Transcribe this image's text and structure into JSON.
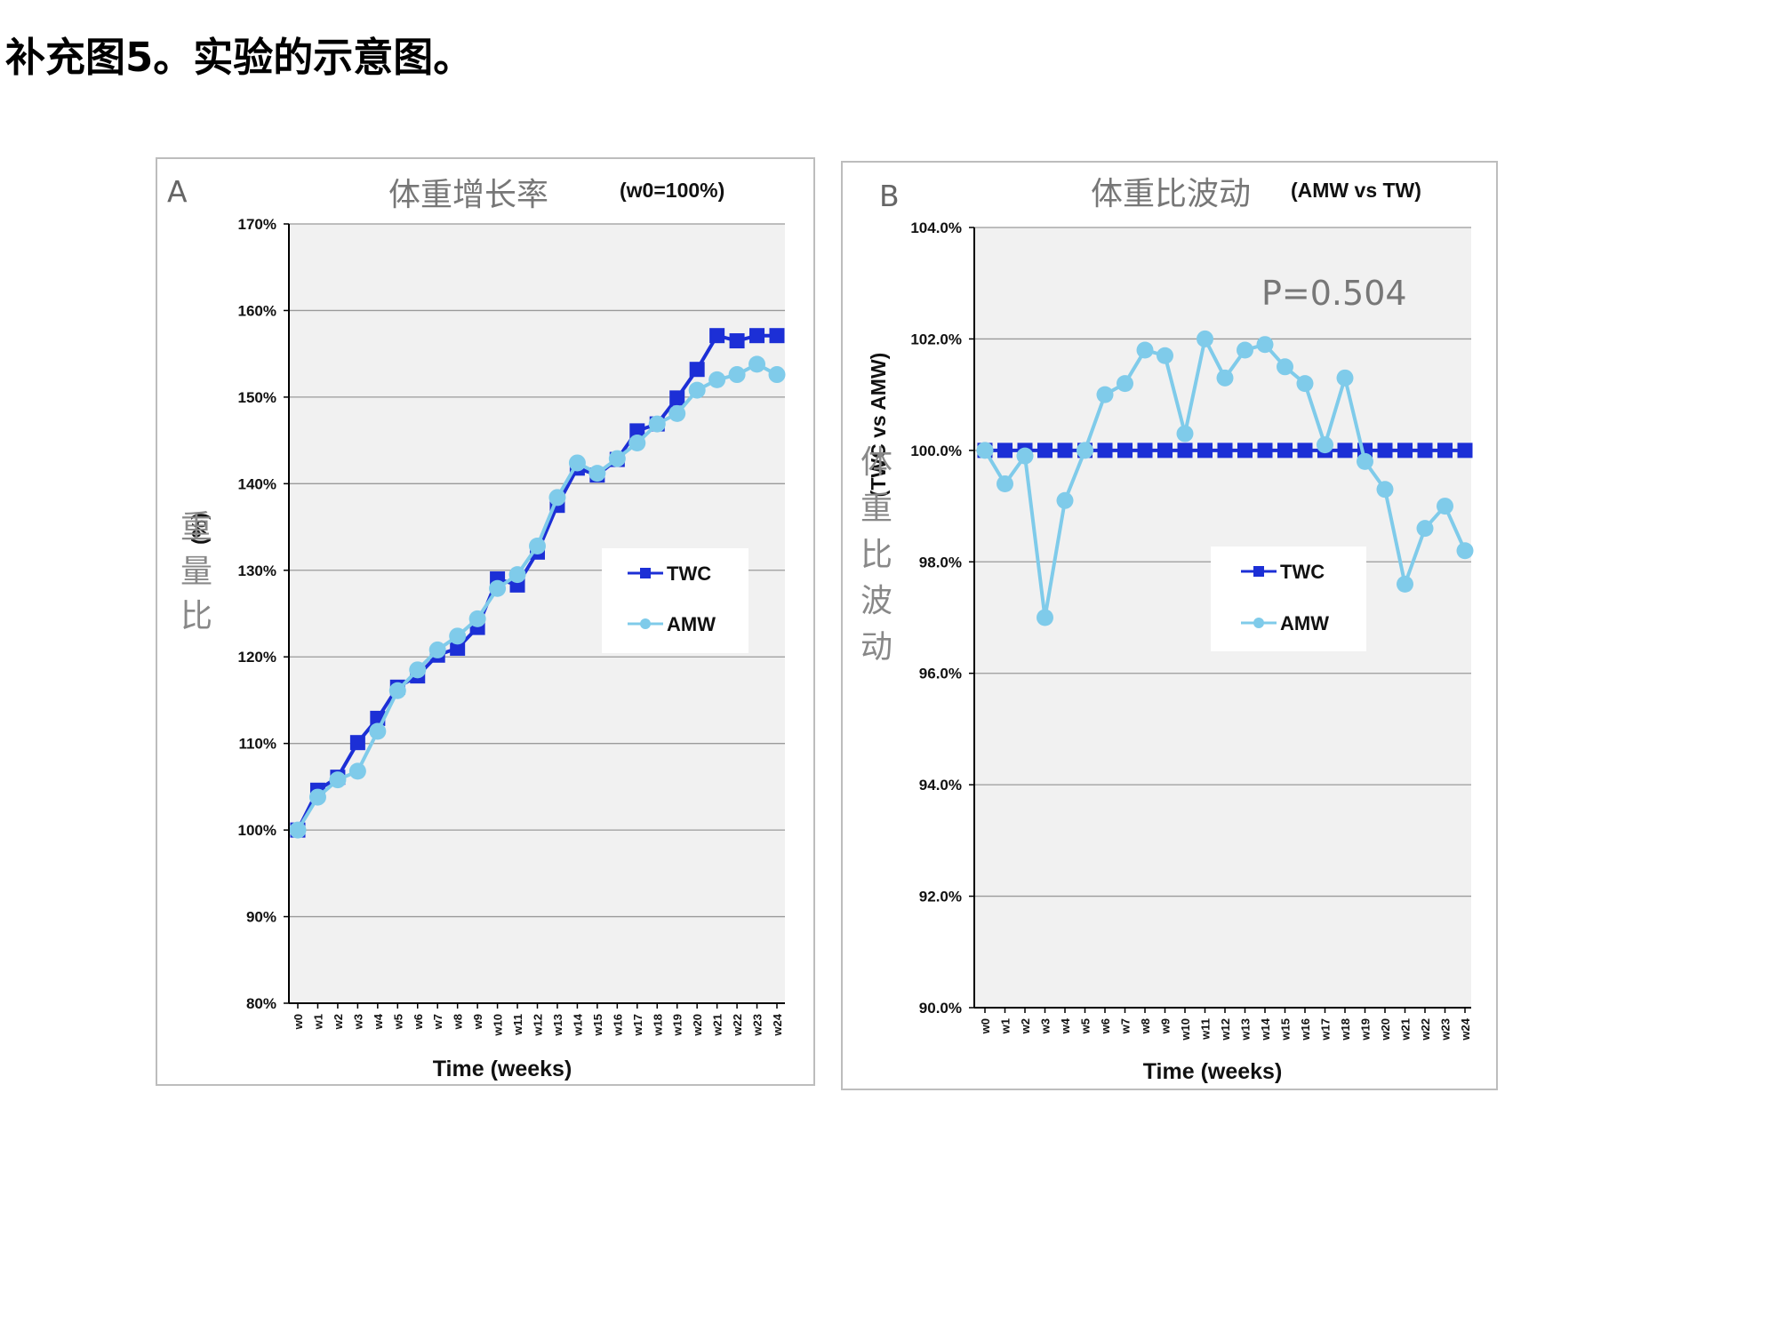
{
  "page_title": "补充图5。实验的示意图。",
  "colors": {
    "TWC": "#1c2fd6",
    "AMW": "#7fcbea",
    "plot_background": "#f1f1f1"
  },
  "chart_data": [
    {
      "type": "line",
      "panel_letter": "A",
      "title": "体重增长率",
      "note": "(w0=100%)",
      "ylabel_cn": "重量比",
      "ylabel_en": "(%)",
      "xlabel": "Time (weeks)",
      "ylim": [
        80,
        170
      ],
      "yticks": [
        80,
        90,
        100,
        110,
        120,
        130,
        140,
        150,
        160,
        170
      ],
      "ytick_labels": [
        "80%",
        "90%",
        "100%",
        "110%",
        "120%",
        "130%",
        "140%",
        "150%",
        "160%",
        "170%"
      ],
      "categories": [
        "w0",
        "w1",
        "w2",
        "w3",
        "w4",
        "w5",
        "w6",
        "w7",
        "w8",
        "w9",
        "w10",
        "w11",
        "w12",
        "w13",
        "w14",
        "w15",
        "w16",
        "w17",
        "w18",
        "w19",
        "w20",
        "w21",
        "w22",
        "w23",
        "w24"
      ],
      "grid": true,
      "legend_position": "center-right",
      "series": [
        {
          "name": "TWC",
          "marker": "square",
          "values": [
            100,
            104.6,
            106.1,
            110.1,
            112.9,
            116.5,
            117.8,
            120.2,
            121.0,
            123.4,
            129.0,
            128.3,
            132.1,
            137.5,
            141.8,
            141.0,
            142.8,
            146.1,
            146.9,
            149.9,
            153.2,
            157.1,
            156.5,
            157.1,
            157.1
          ]
        },
        {
          "name": "AMW",
          "marker": "circle",
          "values": [
            100,
            103.8,
            105.8,
            106.8,
            111.4,
            116.1,
            118.5,
            120.8,
            122.4,
            124.4,
            127.9,
            129.5,
            132.8,
            138.4,
            142.4,
            141.2,
            142.9,
            144.7,
            146.9,
            148.1,
            150.8,
            152.0,
            152.6,
            153.8,
            152.6
          ]
        }
      ]
    },
    {
      "type": "line",
      "panel_letter": "B",
      "title": "体重比波动",
      "note": "(AMW vs TW)",
      "ylabel_cn": "体重比波动",
      "ylabel_en": "(TWC vs AMW)",
      "xlabel": "Time (weeks)",
      "annotation": "P=0.504",
      "ylim": [
        90,
        104
      ],
      "yticks": [
        90,
        92,
        94,
        96,
        98,
        100,
        102,
        104
      ],
      "ytick_labels": [
        "90.0%",
        "92.0%",
        "94.0%",
        "96.0%",
        "98.0%",
        "100.0%",
        "102.0%",
        "104.0%"
      ],
      "categories": [
        "w0",
        "w1",
        "w2",
        "w3",
        "w4",
        "w5",
        "w6",
        "w7",
        "w8",
        "w9",
        "w10",
        "w11",
        "w12",
        "w13",
        "w14",
        "w15",
        "w16",
        "w17",
        "w18",
        "w19",
        "w20",
        "w21",
        "w22",
        "w23",
        "w24"
      ],
      "grid": true,
      "legend_position": "center-right",
      "series": [
        {
          "name": "TWC",
          "marker": "square",
          "values": [
            100,
            100,
            100,
            100,
            100,
            100,
            100,
            100,
            100,
            100,
            100,
            100,
            100,
            100,
            100,
            100,
            100,
            100,
            100,
            100,
            100,
            100,
            100,
            100,
            100
          ]
        },
        {
          "name": "AMW",
          "marker": "circle",
          "values": [
            100.0,
            99.4,
            99.9,
            97.0,
            99.1,
            100.0,
            101.0,
            101.2,
            101.8,
            101.7,
            100.3,
            102.0,
            101.3,
            101.8,
            101.9,
            101.5,
            101.2,
            100.1,
            101.3,
            99.8,
            99.3,
            97.6,
            98.6,
            99.0,
            98.2
          ]
        }
      ]
    }
  ]
}
